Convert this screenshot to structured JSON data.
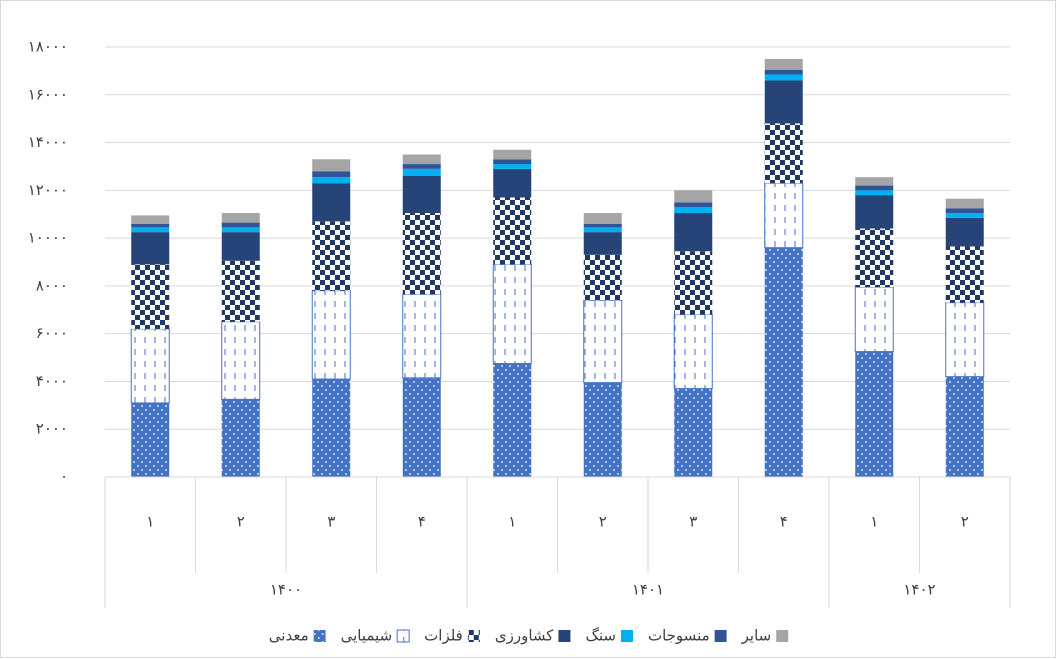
{
  "chart_data": {
    "type": "stacked_bar",
    "groups": [
      {
        "name": "۱۴۰۰",
        "categories": [
          "۱",
          "۲",
          "۳",
          "۴"
        ]
      },
      {
        "name": "۱۴۰۱",
        "categories": [
          "۱",
          "۲",
          "۳",
          "۴"
        ]
      },
      {
        "name": "۱۴۰۲",
        "categories": [
          "۱",
          "۲"
        ]
      }
    ],
    "series": [
      {
        "name": "معدنی",
        "color": "#4472c4",
        "pattern": "dots",
        "values": [
          3100,
          3250,
          4100,
          4150,
          4750,
          3950,
          3700,
          9600,
          5250,
          4200
        ]
      },
      {
        "name": "شیمیایی",
        "color": "#4472c4",
        "pattern": "dashes",
        "values": [
          3100,
          3250,
          3700,
          3500,
          4150,
          3450,
          3100,
          2700,
          2700,
          3100
        ]
      },
      {
        "name": "فلزات",
        "color": "#203864",
        "pattern": "checker",
        "values": [
          2700,
          2550,
          2900,
          3400,
          2800,
          1900,
          2650,
          2500,
          2450,
          2350
        ]
      },
      {
        "name": "کشاورزی",
        "color": "#264478",
        "pattern": "solid",
        "values": [
          1350,
          1200,
          1600,
          1550,
          1200,
          950,
          1600,
          1800,
          1400,
          1200
        ]
      },
      {
        "name": "سنگ",
        "color": "#00b0f0",
        "pattern": "solid",
        "values": [
          200,
          200,
          250,
          300,
          200,
          200,
          250,
          250,
          200,
          200
        ]
      },
      {
        "name": "منسوجات",
        "color": "#2f5597",
        "pattern": "solid",
        "values": [
          150,
          200,
          250,
          200,
          200,
          150,
          200,
          200,
          200,
          200
        ]
      },
      {
        "name": "سایر",
        "color": "#a5a5a5",
        "pattern": "solid",
        "values": [
          350,
          400,
          500,
          400,
          400,
          450,
          500,
          450,
          350,
          400
        ]
      }
    ],
    "ylim": [
      0,
      18000
    ],
    "yticks": [
      {
        "value": 0,
        "label": "٠"
      },
      {
        "value": 2000,
        "label": "۲۰۰۰"
      },
      {
        "value": 4000,
        "label": "۴۰۰۰"
      },
      {
        "value": 6000,
        "label": "۶۰۰۰"
      },
      {
        "value": 8000,
        "label": "۸۰۰۰"
      },
      {
        "value": 10000,
        "label": "۱۰۰۰۰"
      },
      {
        "value": 12000,
        "label": "۱۲۰۰۰"
      },
      {
        "value": 14000,
        "label": "۱۴۰۰۰"
      },
      {
        "value": 16000,
        "label": "۱۶۰۰۰"
      },
      {
        "value": 18000,
        "label": "۱۸۰۰۰"
      }
    ],
    "grid": true,
    "legend": "bottom"
  }
}
